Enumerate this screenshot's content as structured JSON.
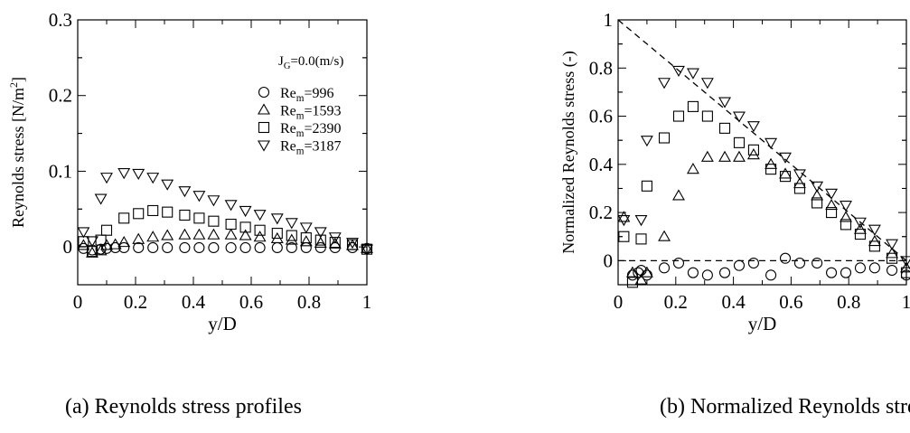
{
  "chart_data": [
    {
      "type": "scatter",
      "title": "",
      "xlabel": "y/D",
      "ylabel": "Reynolds stress [N/m²]",
      "ylabel_parts": {
        "text": "Reynolds stress [N/m",
        "sup": "2",
        "end": "]"
      },
      "xlim": [
        0,
        1
      ],
      "ylim": [
        -0.05,
        0.3
      ],
      "xticks": [
        0,
        0.2,
        0.4,
        0.6,
        0.8,
        1
      ],
      "yticks": [
        0,
        0.1,
        0.2,
        0.3
      ],
      "xtick_labels": [
        "0",
        "0.2",
        "0.4",
        "0.6",
        "0.8",
        "1"
      ],
      "ytick_labels": [
        "0",
        "0.1",
        "0.2",
        "0.3"
      ],
      "grid": false,
      "legend_position": "top-right",
      "annotation": {
        "text": "J",
        "sub": "G",
        "rest": "=0.0(m/s)"
      },
      "caption": "(a) Reynolds stress profiles",
      "series": [
        {
          "name": "Re_m=996",
          "label": {
            "base": "Re",
            "sub": "m",
            "rest": "=996"
          },
          "marker": "circle",
          "x": [
            0.02,
            0.05,
            0.08,
            0.1,
            0.13,
            0.16,
            0.21,
            0.26,
            0.31,
            0.37,
            0.42,
            0.47,
            0.53,
            0.58,
            0.63,
            0.69,
            0.74,
            0.79,
            0.84,
            0.89,
            0.95,
            1.0
          ],
          "y": [
            -0.002,
            -0.004,
            -0.003,
            -0.002,
            -0.001,
            -0.001,
            -0.001,
            -0.001,
            -0.001,
            -0.001,
            -0.001,
            -0.001,
            -0.001,
            -0.001,
            -0.001,
            -0.001,
            -0.001,
            -0.001,
            -0.001,
            -0.001,
            -0.001,
            -0.002
          ]
        },
        {
          "name": "Re_m=1593",
          "label": {
            "base": "Re",
            "sub": "m",
            "rest": "=1593"
          },
          "marker": "triangle-up",
          "x": [
            0.02,
            0.05,
            0.08,
            0.1,
            0.13,
            0.16,
            0.21,
            0.26,
            0.31,
            0.37,
            0.42,
            0.47,
            0.53,
            0.58,
            0.63,
            0.69,
            0.74,
            0.79,
            0.84,
            0.89,
            0.95,
            1.0
          ],
          "y": [
            0.002,
            -0.008,
            -0.005,
            0.002,
            0.003,
            0.006,
            0.01,
            0.013,
            0.015,
            0.016,
            0.016,
            0.016,
            0.016,
            0.015,
            0.013,
            0.011,
            0.009,
            0.007,
            0.005,
            0.004,
            0.002,
            -0.002
          ]
        },
        {
          "name": "Re_m=2390",
          "label": {
            "base": "Re",
            "sub": "m",
            "rest": "=2390"
          },
          "marker": "square",
          "x": [
            0.02,
            0.05,
            0.08,
            0.1,
            0.16,
            0.21,
            0.26,
            0.31,
            0.37,
            0.42,
            0.47,
            0.53,
            0.58,
            0.63,
            0.69,
            0.74,
            0.79,
            0.84,
            0.89,
            0.95,
            1.0
          ],
          "y": [
            0.007,
            -0.006,
            0.009,
            0.022,
            0.038,
            0.044,
            0.048,
            0.046,
            0.042,
            0.038,
            0.034,
            0.03,
            0.026,
            0.022,
            0.018,
            0.015,
            0.012,
            0.009,
            0.006,
            0.003,
            -0.003
          ]
        },
        {
          "name": "Re_m=3187",
          "label": {
            "base": "Re",
            "sub": "m",
            "rest": "=3187"
          },
          "marker": "triangle-down",
          "x": [
            0.02,
            0.05,
            0.08,
            0.1,
            0.16,
            0.21,
            0.26,
            0.31,
            0.37,
            0.42,
            0.47,
            0.53,
            0.58,
            0.63,
            0.69,
            0.74,
            0.79,
            0.84,
            0.89,
            0.95,
            1.0
          ],
          "y": [
            0.02,
            0.008,
            0.064,
            0.092,
            0.098,
            0.097,
            0.092,
            0.083,
            0.074,
            0.068,
            0.062,
            0.056,
            0.048,
            0.043,
            0.038,
            0.032,
            0.026,
            0.02,
            0.013,
            0.006,
            -0.003
          ]
        }
      ]
    },
    {
      "type": "scatter",
      "title": "",
      "xlabel": "y/D",
      "ylabel": "Normalized Reynolds stress (-)",
      "xlim": [
        0,
        1
      ],
      "ylim": [
        -0.1,
        1
      ],
      "xticks": [
        0,
        0.2,
        0.4,
        0.6,
        0.8,
        1
      ],
      "yticks": [
        0,
        0.2,
        0.4,
        0.6,
        0.8,
        1
      ],
      "xtick_labels": [
        "0",
        "0.2",
        "0.4",
        "0.6",
        "0.8",
        "1"
      ],
      "ytick_labels": [
        "0",
        "0.2",
        "0.4",
        "0.6",
        "0.8",
        "1"
      ],
      "grid": false,
      "reference_lines": [
        {
          "style": "dashed",
          "x": [
            0,
            1
          ],
          "y": [
            1,
            0
          ]
        },
        {
          "style": "dashed",
          "x": [
            0,
            1
          ],
          "y": [
            0,
            0
          ]
        }
      ],
      "caption": "(b) Normalized Reynolds stress pro",
      "series": [
        {
          "name": "Re_m=996",
          "marker": "circle",
          "x": [
            0.05,
            0.07,
            0.08,
            0.1,
            0.16,
            0.21,
            0.26,
            0.31,
            0.37,
            0.42,
            0.47,
            0.53,
            0.58,
            0.63,
            0.69,
            0.74,
            0.79,
            0.84,
            0.89,
            0.95,
            1.0
          ],
          "y": [
            -0.06,
            -0.05,
            -0.04,
            -0.06,
            -0.03,
            -0.01,
            -0.05,
            -0.06,
            -0.05,
            -0.02,
            -0.01,
            -0.06,
            0.01,
            -0.01,
            -0.01,
            -0.05,
            -0.05,
            -0.03,
            -0.03,
            -0.04,
            -0.06
          ]
        },
        {
          "name": "Re_m=1593",
          "marker": "triangle-up",
          "x": [
            0.02,
            0.05,
            0.08,
            0.1,
            0.16,
            0.21,
            0.26,
            0.31,
            0.37,
            0.42,
            0.47,
            0.53,
            0.58,
            0.63,
            0.69,
            0.74,
            0.79,
            0.84,
            0.89,
            0.95,
            1.0
          ],
          "y": [
            0.18,
            -0.05,
            -0.08,
            -0.05,
            0.1,
            0.27,
            0.38,
            0.43,
            0.43,
            0.43,
            0.44,
            0.4,
            0.36,
            0.32,
            0.27,
            0.23,
            0.18,
            0.13,
            0.08,
            0.03,
            -0.03
          ]
        },
        {
          "name": "Re_m=2390",
          "marker": "square",
          "x": [
            0.02,
            0.05,
            0.08,
            0.1,
            0.16,
            0.21,
            0.26,
            0.31,
            0.37,
            0.42,
            0.47,
            0.53,
            0.58,
            0.63,
            0.69,
            0.74,
            0.79,
            0.84,
            0.89,
            0.95,
            1.0
          ],
          "y": [
            0.1,
            -0.09,
            0.09,
            0.31,
            0.51,
            0.6,
            0.64,
            0.6,
            0.55,
            0.49,
            0.46,
            0.38,
            0.35,
            0.3,
            0.24,
            0.2,
            0.15,
            0.11,
            0.06,
            0.01,
            -0.05
          ]
        },
        {
          "name": "Re_m=3187",
          "marker": "triangle-down",
          "x": [
            0.02,
            0.08,
            0.1,
            0.16,
            0.21,
            0.26,
            0.31,
            0.37,
            0.42,
            0.47,
            0.53,
            0.58,
            0.63,
            0.69,
            0.74,
            0.79,
            0.84,
            0.89,
            0.95,
            1.0
          ],
          "y": [
            0.17,
            0.17,
            0.5,
            0.74,
            0.79,
            0.78,
            0.74,
            0.66,
            0.6,
            0.56,
            0.49,
            0.43,
            0.36,
            0.31,
            0.28,
            0.23,
            0.16,
            0.13,
            0.07,
            0.0
          ]
        }
      ]
    }
  ]
}
